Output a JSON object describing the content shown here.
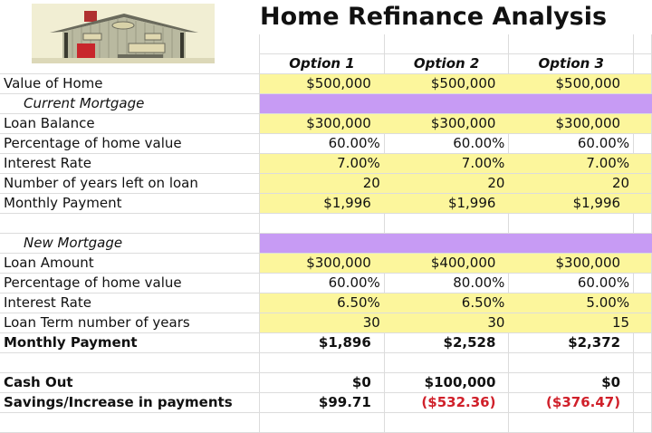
{
  "title": "Home Refinance Analysis",
  "logo": {
    "icon": "house-illustration"
  },
  "colors": {
    "input_fill": "#fcf69c",
    "section_fill": "#c79bf4",
    "negative": "#d0202a"
  },
  "columns": [
    "Option 1",
    "Option 2",
    "Option 3"
  ],
  "rows": [
    {
      "label": "Value of Home",
      "values": [
        "$500,000",
        "$500,000",
        "$500,000"
      ],
      "fill": "yellow"
    },
    {
      "label": "Current Mortgage",
      "section": true
    },
    {
      "label": "Loan Balance",
      "values": [
        "$300,000",
        "$300,000",
        "$300,000"
      ],
      "fill": "yellow"
    },
    {
      "label": "Percentage of home value",
      "values": [
        "60.00%",
        "60.00%",
        "60.00%"
      ]
    },
    {
      "label": "Interest Rate",
      "values": [
        "7.00%",
        "7.00%",
        "7.00%"
      ],
      "fill": "yellow"
    },
    {
      "label": "Number of years left on loan",
      "values": [
        "20",
        "20",
        "20"
      ],
      "fill": "yellow"
    },
    {
      "label": "Monthly Payment",
      "values": [
        "$1,996",
        "$1,996",
        "$1,996"
      ],
      "fill": "yellow"
    },
    {
      "label": "",
      "values": [
        "",
        "",
        ""
      ]
    },
    {
      "label": "New Mortgage",
      "section": true
    },
    {
      "label": "Loan Amount",
      "values": [
        "$300,000",
        "$400,000",
        "$300,000"
      ],
      "fill": "yellow"
    },
    {
      "label": "Percentage of home value",
      "values": [
        "60.00%",
        "80.00%",
        "60.00%"
      ]
    },
    {
      "label": "Interest Rate",
      "values": [
        "6.50%",
        "6.50%",
        "5.00%"
      ],
      "fill": "yellow"
    },
    {
      "label": "Loan Term number of years",
      "values": [
        "30",
        "30",
        "15"
      ],
      "fill": "yellow"
    },
    {
      "label": "Monthly Payment",
      "values": [
        "$1,896",
        "$2,528",
        "$2,372"
      ],
      "bold": true
    },
    {
      "label": "",
      "values": [
        "",
        "",
        ""
      ]
    },
    {
      "label": "Cash Out",
      "values": [
        "$0",
        "$100,000",
        "$0"
      ],
      "bold": true
    },
    {
      "label": "Savings/Increase in payments",
      "values": [
        "$99.71",
        "($532.36)",
        "($376.47)"
      ],
      "bold": true,
      "negative": [
        false,
        true,
        true
      ]
    },
    {
      "label": "",
      "values": [
        "",
        "",
        ""
      ]
    }
  ]
}
